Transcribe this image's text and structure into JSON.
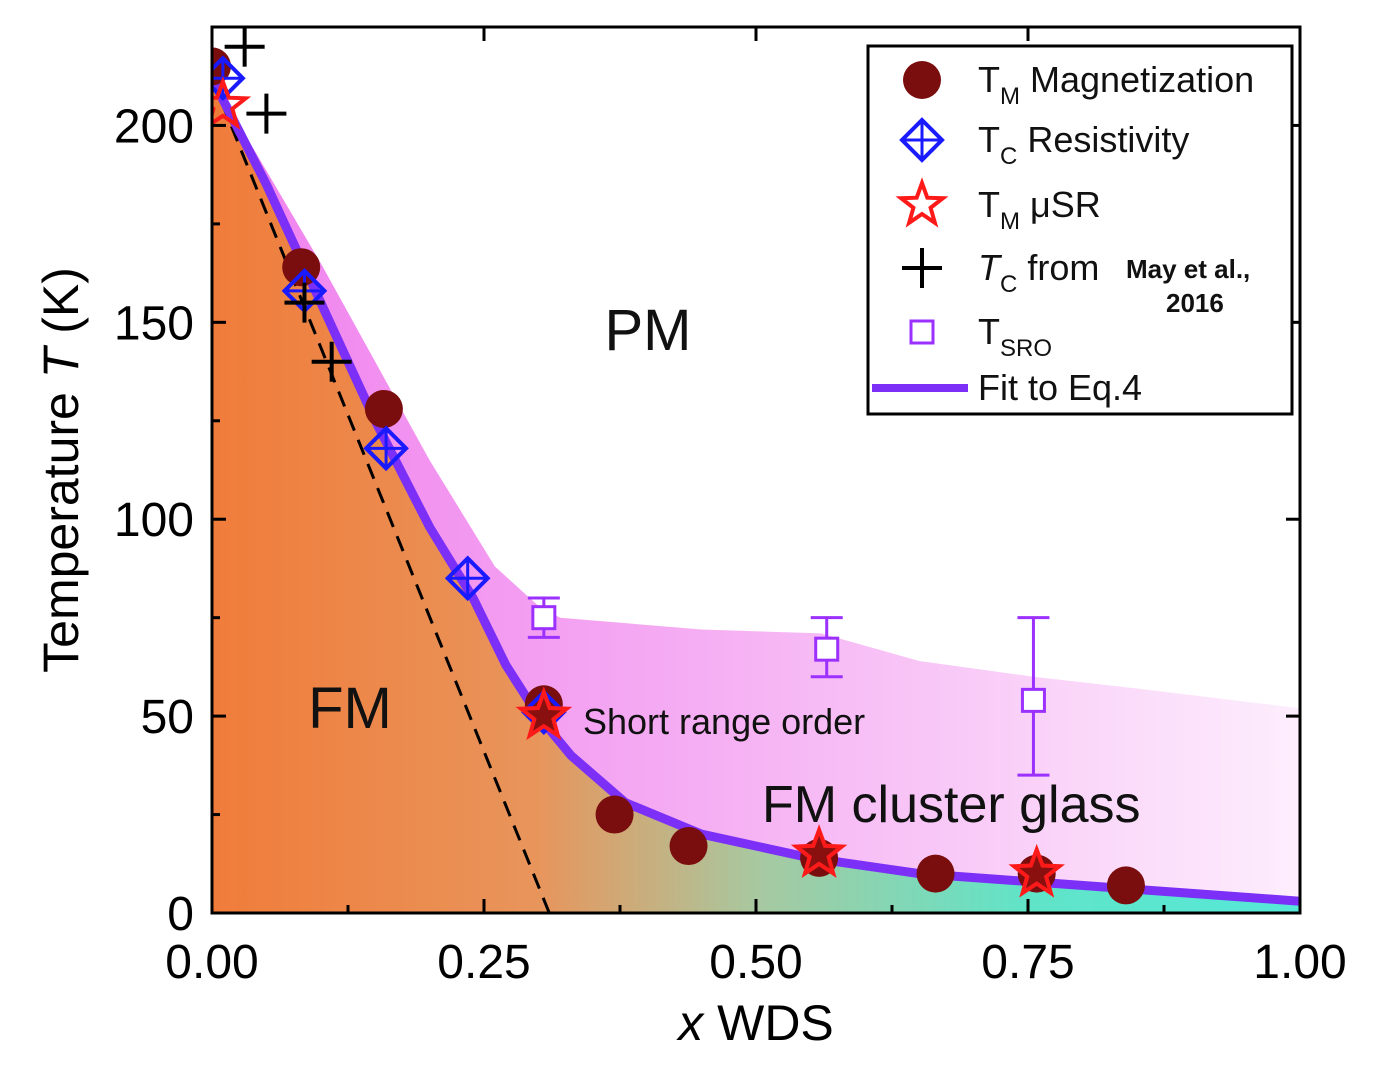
{
  "chart_data": {
    "type": "scatter",
    "title": "",
    "xlabel": "x WDS",
    "xlabel_var": "x",
    "xlabel_rest": "WDS",
    "ylabel": "Temperature T (K)",
    "ylabel_pre": "Temperature",
    "ylabel_var": "T",
    "ylabel_post": "(K)",
    "xlim": [
      0,
      1.0
    ],
    "ylim": [
      0,
      225
    ],
    "x_ticks": [
      0,
      0.25,
      0.5,
      0.75,
      1.0
    ],
    "x_tick_labels": [
      "0.00",
      "0.25",
      "0.50",
      "0.75",
      "1.00"
    ],
    "y_ticks": [
      0,
      50,
      100,
      150,
      200
    ],
    "y_tick_labels": [
      "0",
      "50",
      "100",
      "150",
      "200"
    ],
    "regions": {
      "pm": "PM",
      "fm": "FM",
      "short_range": "Short range order",
      "cluster_glass": "FM cluster glass"
    },
    "series": [
      {
        "name": "TM Magnetization",
        "marker": "circle",
        "color": "#7a0d0d",
        "x": [
          0.0,
          0.082,
          0.158,
          0.305,
          0.37,
          0.438,
          0.558,
          0.665,
          0.758,
          0.84
        ],
        "y": [
          215,
          164,
          128,
          53,
          25,
          17,
          14,
          10,
          10,
          7
        ]
      },
      {
        "name": "TC Resistivity",
        "marker": "diamond-cross",
        "color": "#1a1aff",
        "x": [
          0.01,
          0.085,
          0.16,
          0.235,
          0.305
        ],
        "y": [
          212,
          158,
          118,
          85,
          51
        ]
      },
      {
        "name": "TM μSR",
        "marker": "star",
        "color": "#ff1a1a",
        "x": [
          0.01,
          0.305,
          0.558,
          0.758
        ],
        "y": [
          205,
          50,
          15,
          10
        ]
      },
      {
        "name": "TC from May et al., 2016",
        "marker": "plus",
        "color": "#000000",
        "x": [
          0.03,
          0.05,
          0.085,
          0.11
        ],
        "y": [
          220,
          203,
          155,
          140
        ]
      },
      {
        "name": "TSRO",
        "marker": "open-square",
        "color": "#9b30ff",
        "x": [
          0.305,
          0.565,
          0.755
        ],
        "y": [
          75,
          67,
          54
        ],
        "err_low": [
          70,
          60,
          35
        ],
        "err_high": [
          80,
          75,
          75
        ]
      },
      {
        "name": "Fit to Eq.4",
        "marker": "line",
        "color": "#7b2ff7",
        "x": [
          0.0,
          0.05,
          0.1,
          0.15,
          0.2,
          0.24,
          0.27,
          0.3,
          0.33,
          0.38,
          0.45,
          0.55,
          0.65,
          0.75,
          0.85,
          1.0
        ],
        "y": [
          212,
          185,
          155,
          125,
          98,
          80,
          63,
          50,
          40,
          28,
          20,
          14,
          10,
          8,
          6,
          3
        ]
      },
      {
        "name": "linear extrapolation",
        "marker": "dashed",
        "color": "#000000",
        "x": [
          0.0,
          0.31
        ],
        "y": [
          212,
          0
        ]
      }
    ],
    "legend": {
      "placement": "top-right",
      "entries": [
        {
          "main": "T",
          "sub": "M",
          "rest": " Magnetization"
        },
        {
          "main": "T",
          "sub": "C",
          "rest": " Resistivity"
        },
        {
          "main": "T",
          "sub": "M",
          "rest": " μSR"
        },
        {
          "main": "T",
          "sub": "C",
          "rest": " from ",
          "small": "May et al.,",
          "small2": "2016"
        },
        {
          "main": "T",
          "sub": "SRO",
          "rest": ""
        },
        {
          "main": "Fit to Eq.4",
          "sub": "",
          "rest": ""
        }
      ]
    }
  }
}
